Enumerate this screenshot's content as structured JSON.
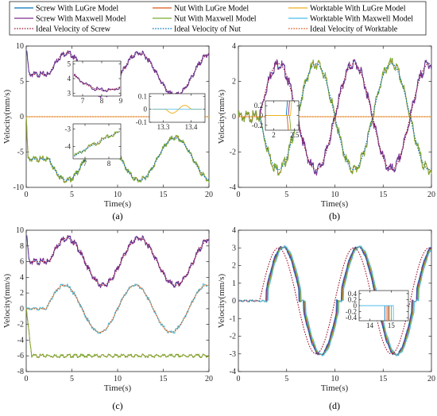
{
  "legend": {
    "entries": [
      {
        "name": "Screw With LuGre Model",
        "color": "#0072BD",
        "dash": "solid"
      },
      {
        "name": "Nut With LuGre Model",
        "color": "#D95319",
        "dash": "solid"
      },
      {
        "name": "Worktable With LuGre Model",
        "color": "#EDB120",
        "dash": "solid"
      },
      {
        "name": "Screw With Maxwell Model",
        "color": "#7E2F8E",
        "dash": "solid"
      },
      {
        "name": "Nut With Maxwell Model",
        "color": "#77AC30",
        "dash": "solid"
      },
      {
        "name": "Worktable With Maxwell Model",
        "color": "#4DBEEE",
        "dash": "solid"
      },
      {
        "name": "Ideal Velocity of Screw",
        "color": "#A2142F",
        "dash": "dotted"
      },
      {
        "name": "Ideal Velocity of Nut",
        "color": "#0072BD",
        "dash": "dotted"
      },
      {
        "name": "Ideal Velocity of Worktable",
        "color": "#D95319",
        "dash": "dotted"
      }
    ]
  },
  "chart_data": [
    {
      "type": "line",
      "panel_label": "(a)",
      "xlabel": "Time(s)",
      "ylabel": "Velocity(mm/s)",
      "xlim": [
        0,
        20
      ],
      "ylim": [
        -10,
        10
      ],
      "xticks": [
        "0",
        "5",
        "10",
        "15",
        "20"
      ],
      "yticks": [
        "-10",
        "-5",
        "0",
        "5",
        "10"
      ],
      "series": [
        {
          "name": "Ideal Velocity of Screw",
          "x": [
            0,
            1,
            2,
            3,
            4,
            5,
            6,
            7,
            8,
            9,
            10,
            11,
            12,
            13,
            14,
            15,
            16,
            17,
            18,
            19,
            20
          ],
          "y": [
            6,
            6,
            6,
            6,
            8.8,
            9,
            8,
            6.2,
            4,
            3,
            3.4,
            5,
            7.3,
            8.9,
            8.6,
            6.9,
            4.6,
            3.1,
            3,
            4.5,
            9
          ]
        },
        {
          "name": "Ideal Velocity of Nut",
          "x": [
            0,
            1,
            2,
            3,
            4,
            5,
            6,
            7,
            8,
            9,
            10,
            11,
            12,
            13,
            14,
            15,
            16,
            17,
            18,
            19,
            20
          ],
          "y": [
            -6,
            -6,
            -6,
            -6,
            -8.8,
            -9,
            -8,
            -6.2,
            -4,
            -3,
            -3.4,
            -5,
            -7.3,
            -8.9,
            -8.6,
            -6.9,
            -4.6,
            -3.1,
            -3,
            -4.5,
            -9
          ]
        },
        {
          "name": "Ideal Velocity of Worktable",
          "x": [
            0,
            20
          ],
          "y": [
            0,
            0
          ]
        }
      ],
      "insets": [
        {
          "xlim": [
            6.5,
            9
          ],
          "ylim": [
            2.8,
            5.2
          ],
          "xticks": [
            "7",
            "8",
            "9"
          ],
          "yticks": [
            "3",
            "4",
            "5"
          ]
        },
        {
          "xlim": [
            13.25,
            13.45
          ],
          "ylim": [
            -0.1,
            0.12
          ],
          "xticks": [
            "13.3",
            "13.4"
          ],
          "yticks": [
            "-0.1",
            "0",
            "0.1"
          ]
        },
        {
          "xlim": [
            6.5,
            8.5
          ],
          "ylim": [
            -4.7,
            -2.7
          ],
          "xticks": [
            "7",
            "8"
          ],
          "yticks": [
            "-4",
            "-3"
          ]
        }
      ]
    },
    {
      "type": "line",
      "panel_label": "(b)",
      "xlabel": "Time(s)",
      "ylabel": "Velocity(mm/s)",
      "xlim": [
        0,
        20
      ],
      "ylim": [
        -4,
        4
      ],
      "xticks": [
        "0",
        "5",
        "10",
        "15",
        "20"
      ],
      "yticks": [
        "-4",
        "-2",
        "0",
        "2",
        "4"
      ],
      "series": [
        {
          "name": "Ideal Velocity of Screw",
          "x": [
            0,
            2,
            4,
            6,
            8,
            10,
            12,
            14,
            16,
            18,
            20
          ],
          "y": [
            0,
            0,
            3,
            0,
            -3,
            0,
            3,
            0,
            -3,
            0,
            3
          ]
        },
        {
          "name": "Ideal Velocity of Nut",
          "x": [
            0,
            2,
            4,
            6,
            8,
            10,
            12,
            14,
            16,
            18,
            20
          ],
          "y": [
            0,
            0,
            -3,
            0,
            3,
            0,
            -3,
            0,
            3,
            0,
            -3
          ]
        },
        {
          "name": "Ideal Velocity of Worktable",
          "x": [
            0,
            20
          ],
          "y": [
            0,
            0
          ]
        }
      ],
      "insets": [
        {
          "xlim": [
            1.8,
            2.6
          ],
          "ylim": [
            -0.3,
            0.3
          ],
          "xticks": [
            "2",
            "2.5"
          ],
          "yticks": [
            "-0.2",
            "0",
            "0.2"
          ]
        }
      ]
    },
    {
      "type": "line",
      "panel_label": "(c)",
      "xlabel": "Time(s)",
      "ylabel": "Velocity(mm/s)",
      "xlim": [
        0,
        20
      ],
      "ylim": [
        -8,
        10
      ],
      "xticks": [
        "0",
        "5",
        "10",
        "15",
        "20"
      ],
      "yticks": [
        "-8",
        "-6",
        "-4",
        "-2",
        "0",
        "2",
        "4",
        "6",
        "8",
        "10"
      ],
      "series": [
        {
          "name": "Ideal Velocity of Screw",
          "x": [
            0,
            1,
            2,
            3,
            4,
            5,
            6,
            7,
            8,
            9,
            10,
            11,
            12,
            13,
            14,
            15,
            16,
            17,
            18,
            19,
            20
          ],
          "y": [
            6,
            6,
            6,
            6.5,
            8.8,
            9,
            8,
            6.2,
            4,
            3,
            3.4,
            5,
            7.3,
            8.9,
            8.6,
            6.9,
            4.6,
            3.1,
            3,
            4.5,
            9
          ]
        },
        {
          "name": "Ideal Velocity of Worktable",
          "x": [
            0,
            2,
            4,
            6,
            8,
            10,
            12,
            14,
            16,
            18,
            20
          ],
          "y": [
            0,
            0,
            3,
            0,
            -3,
            0,
            3,
            0,
            -3,
            0,
            3
          ]
        },
        {
          "name": "Ideal Velocity of Nut",
          "x": [
            0,
            1,
            20
          ],
          "y": [
            -6,
            -6,
            -6
          ]
        }
      ]
    },
    {
      "type": "line",
      "panel_label": "(d)",
      "xlabel": "Time(s)",
      "ylabel": "Velocity(mm/s)",
      "xlim": [
        0,
        20
      ],
      "ylim": [
        -4,
        4
      ],
      "xticks": [
        "0",
        "5",
        "10",
        "15",
        "20"
      ],
      "yticks": [
        "-4",
        "-3",
        "-2",
        "-1",
        "0",
        "1",
        "2",
        "3",
        "4"
      ],
      "series": [
        {
          "name": "Ideal Velocity of Screw",
          "x": [
            0,
            2,
            4,
            6,
            8,
            10,
            12,
            14,
            16,
            18,
            20
          ],
          "y": [
            0,
            0,
            3,
            0,
            -3,
            0,
            3,
            0,
            -3,
            0,
            3
          ]
        }
      ],
      "insets": [
        {
          "xlim": [
            13.5,
            15.8
          ],
          "ylim": [
            -0.5,
            0.5
          ],
          "xticks": [
            "14",
            "15"
          ],
          "yticks": [
            "-0.4",
            "-0.2",
            "0",
            "0.2",
            "0.4"
          ]
        }
      ]
    }
  ]
}
